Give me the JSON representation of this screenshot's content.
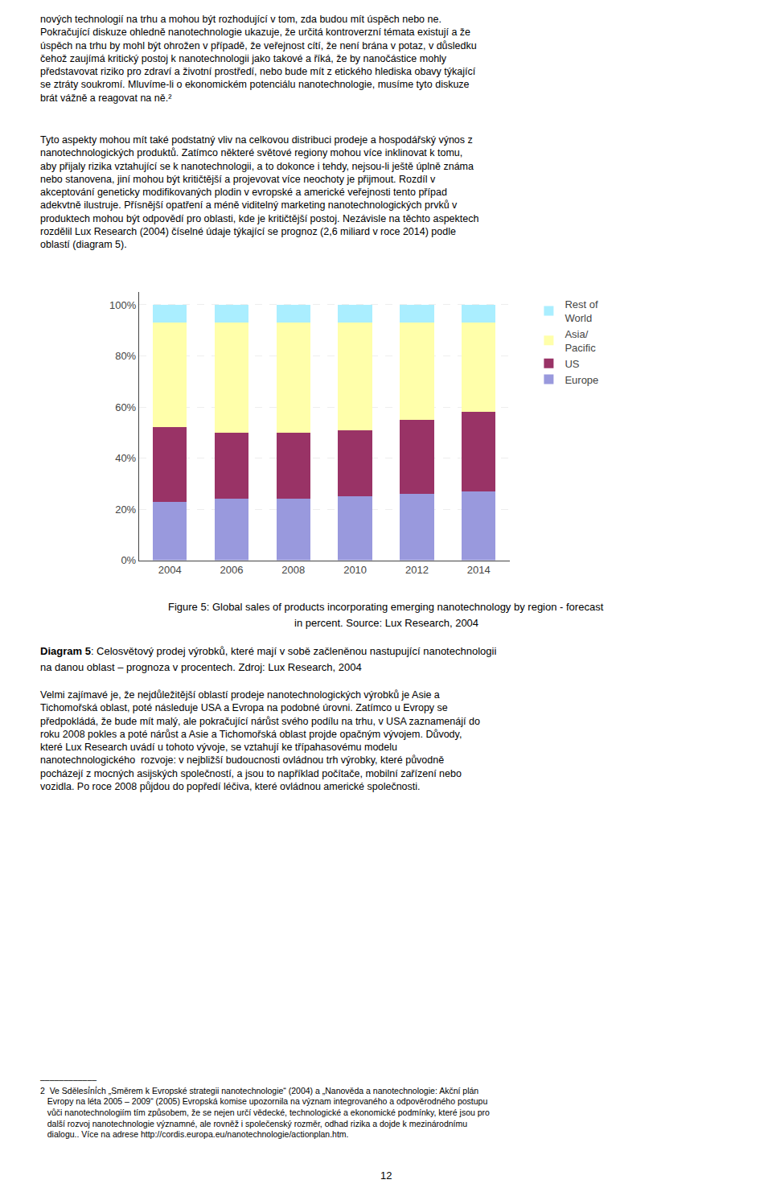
{
  "chart_data": {
    "type": "bar",
    "stacked": true,
    "title": "Figure 5: Global sales of products incorporating emerging nanotechnology by region - forecast",
    "subtitle": "in percent. Source: Lux Research, 2004",
    "categories": [
      "2004",
      "2006",
      "2008",
      "2010",
      "2012",
      "2014"
    ],
    "series": [
      {
        "name": "Europe",
        "color": "#9999DD",
        "values": [
          23,
          24,
          24,
          25,
          26,
          27
        ]
      },
      {
        "name": "US",
        "color": "#993366",
        "values": [
          29,
          26,
          26,
          26,
          29,
          31
        ]
      },
      {
        "name": "Asia/\nPacific",
        "color": "#FFFFAA",
        "values": [
          41,
          43,
          43,
          42,
          38,
          35
        ]
      },
      {
        "name": "Rest of\nWorld",
        "color": "#AAEEFF",
        "values": [
          7,
          7,
          7,
          7,
          7,
          7
        ]
      }
    ],
    "ylim": [
      0,
      105
    ],
    "yticks": [
      {
        "value": 0,
        "label": "0%"
      },
      {
        "value": 20,
        "label": "20%"
      },
      {
        "value": 40,
        "label": "40%"
      },
      {
        "value": 60,
        "label": "60%"
      },
      {
        "value": 80,
        "label": "80%"
      },
      {
        "value": 100,
        "label": "100%"
      }
    ],
    "grid": true,
    "legend": "right",
    "annotations": [
      "nových technologií na trhu a mohou být rozhodující v tom, zda budou mít úspěch nebo ne.\nPokračující diskuze ohledně nanotechnologie ukazuje, že určitá kontroverzní témata existují a že\núspěch na trhu by mohl být ohrožen v případě, že veřejnost cítí, že není brána v potaz, v důsledku\nčehož zaujímá kritický postoj k nanotechnologii jako takové a říká, že by nanočástice mohly\npředstavovat riziko pro zdraví a životní prostředí, nebo bude mít z etického hlediska obavy týkající\nse ztráty soukromí. Mluvíme-li o ekonomickém potenciálu nanotechnologie, musíme tyto diskuze\nbrát vážně a reagovat na ně.²",
      "Tyto aspekty mohou mít také podstatný vliv na celkovou distribuci prodeje a hospodářský výnos z\nnanotechnologických produktů. Zatímco některé světové regiony mohou více inklinovat k tomu,\naby přijaly rizika vztahující se k nanotechnologii, a to dokonce i tehdy, nejsou-li ještě úplně známa\nnebo stanovena, jiní mohou být kritičtější a projevovat více neochoty je přijmout. Rozdíl v\nakceptování geneticky modifikovaných plodin v evropské a americké veřejnosti tento případ\nadekvtně ilustruje. Přísnější opatření a méně viditelný marketing nanotechnologických prvků v\nproduktech mohou být odpovědí pro oblasti, kde je kritičtější postoj. Nezávisle na těchto aspektech\nrozdělil Lux Research (2004) číselné údaje týkající se prognoz (2,6 miliard v roce 2014) podle\noblastí (diagram 5).",
      "Diagram 5",
      ": Celosvětový prodej výrobků, které mají v sobě začleněnou nastupující nanotechnologii",
      "na danou oblast – prognoza v procentech. Zdroj: Lux Research, 2004",
      "Velmi zajímavé je, že nejdůležitější oblastí prodeje nanotechnologických výrobků je Asie a\nTichomořská oblast, poté následuje USA a Evropa na podobné úrovni. Zatímco u Evropy se\npředpokládá, že bude mít malý, ale pokračující nárůst svého podílu na trhu, v USA zaznamenájí do\nroku 2008 pokles a poté nárůst a Asie a Tichomořská oblast projde opačným vývojem. Důvody,\nkteré Lux Research uvádí u tohoto vývoje, se vztahují ke třípahasovému modelu\nnanotechnologického  rozvoje: v nejbližší budoucnosti ovládnou trh výrobky, které původně\npocházejí z mocných asijských společností, a jsou to například počítače, mobilní zařízení nebo\nvozidla. Po roce 2008 půjdou do popředí léčiva, které ovládnou americké společnosti.",
      "––––––––––––\n2  Ve Sdělesí́ní́ch „Směrem k Evropské strategii nanotechnologie“ (2004) a „Nanověda a nanotechnologie: Akční plán\n   Evropy na léta 2005 – 2009“ (2005) Evropská komise upozornila na význam integrovaného a odpověrodného postupu\n   vůči nanotechnologiím tím způsobem, že se nejen určí vědecké, technologické a ekonomické podmínky, které jsou pro\n   další rozvoj nanotechnologie významné, ale rovněž i společenský rozměr, odhad rizika a dojde k mezinárodnímu\n   dialogu.. Více na adrese http://cordis.europa.eu/nanotechnologie/actionplan.htm.",
      "12"
    ]
  }
}
